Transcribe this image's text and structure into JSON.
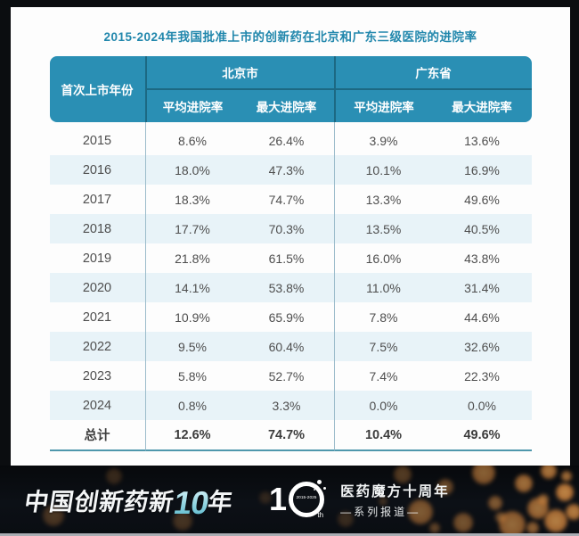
{
  "title": "2015-2024年我国批准上市的创新药在北京和广东三级医院的进院率",
  "chart_data": {
    "type": "table",
    "title": "2015-2024年我国批准上市的创新药在北京和广东三级医院的进院率",
    "columns": [
      "首次上市年份",
      "北京市 平均进院率",
      "北京市 最大进院率",
      "广东省 平均进院率",
      "广东省 最大进院率"
    ],
    "rows": [
      [
        "2015",
        "8.6%",
        "26.4%",
        "3.9%",
        "13.6%"
      ],
      [
        "2016",
        "18.0%",
        "47.3%",
        "10.1%",
        "16.9%"
      ],
      [
        "2017",
        "18.3%",
        "74.7%",
        "13.3%",
        "49.6%"
      ],
      [
        "2018",
        "17.7%",
        "70.3%",
        "13.5%",
        "40.5%"
      ],
      [
        "2019",
        "21.8%",
        "61.5%",
        "16.0%",
        "43.8%"
      ],
      [
        "2020",
        "14.1%",
        "53.8%",
        "11.0%",
        "31.4%"
      ],
      [
        "2021",
        "10.9%",
        "65.9%",
        "7.8%",
        "44.6%"
      ],
      [
        "2022",
        "9.5%",
        "60.4%",
        "7.5%",
        "32.6%"
      ],
      [
        "2023",
        "5.8%",
        "52.7%",
        "7.4%",
        "22.3%"
      ],
      [
        "2024",
        "0.8%",
        "3.3%",
        "0.0%",
        "0.0%"
      ]
    ],
    "total_row": [
      "总计",
      "12.6%",
      "74.7%",
      "10.4%",
      "49.6%"
    ]
  },
  "table": {
    "year_header": "首次上市年份",
    "group_bj": "北京市",
    "group_gd": "广东省",
    "sub_avg_bj": "平均进院率",
    "sub_max_bj": "最大进院率",
    "sub_avg_gd": "平均进院率",
    "sub_max_gd": "最大进院率",
    "rows": [
      [
        "2015",
        "8.6%",
        "26.4%",
        "3.9%",
        "13.6%"
      ],
      [
        "2016",
        "18.0%",
        "47.3%",
        "10.1%",
        "16.9%"
      ],
      [
        "2017",
        "18.3%",
        "74.7%",
        "13.3%",
        "49.6%"
      ],
      [
        "2018",
        "17.7%",
        "70.3%",
        "13.5%",
        "40.5%"
      ],
      [
        "2019",
        "21.8%",
        "61.5%",
        "16.0%",
        "43.8%"
      ],
      [
        "2020",
        "14.1%",
        "53.8%",
        "11.0%",
        "31.4%"
      ],
      [
        "2021",
        "10.9%",
        "65.9%",
        "7.8%",
        "44.6%"
      ],
      [
        "2022",
        "9.5%",
        "60.4%",
        "7.5%",
        "32.6%"
      ],
      [
        "2023",
        "5.8%",
        "52.7%",
        "7.4%",
        "22.3%"
      ],
      [
        "2024",
        "0.8%",
        "3.3%",
        "0.0%",
        "0.0%"
      ]
    ],
    "total_row": [
      "总计",
      "12.6%",
      "74.7%",
      "10.4%",
      "49.6%"
    ]
  },
  "banner": {
    "slogan_prefix": "中国创新药新",
    "slogan_number": "10",
    "slogan_suffix": "年",
    "logo": {
      "one": "1",
      "years": "2015-2025",
      "th": "th"
    },
    "org_line1": "医药魔方十周年",
    "org_line2": "—系列报道—"
  },
  "colors": {
    "header_teal": "#2a8fb4",
    "title_teal": "#2187ac",
    "header_divider": "#1c6983",
    "alt_row_bg": "#e8f3f8",
    "column_divider": "#9cbccb",
    "total_bottom_line": "#4e97ac",
    "body_text": "#4e4e4e",
    "banner_bg": "#0b0d10",
    "bokeh_orange": "#d2813c"
  }
}
